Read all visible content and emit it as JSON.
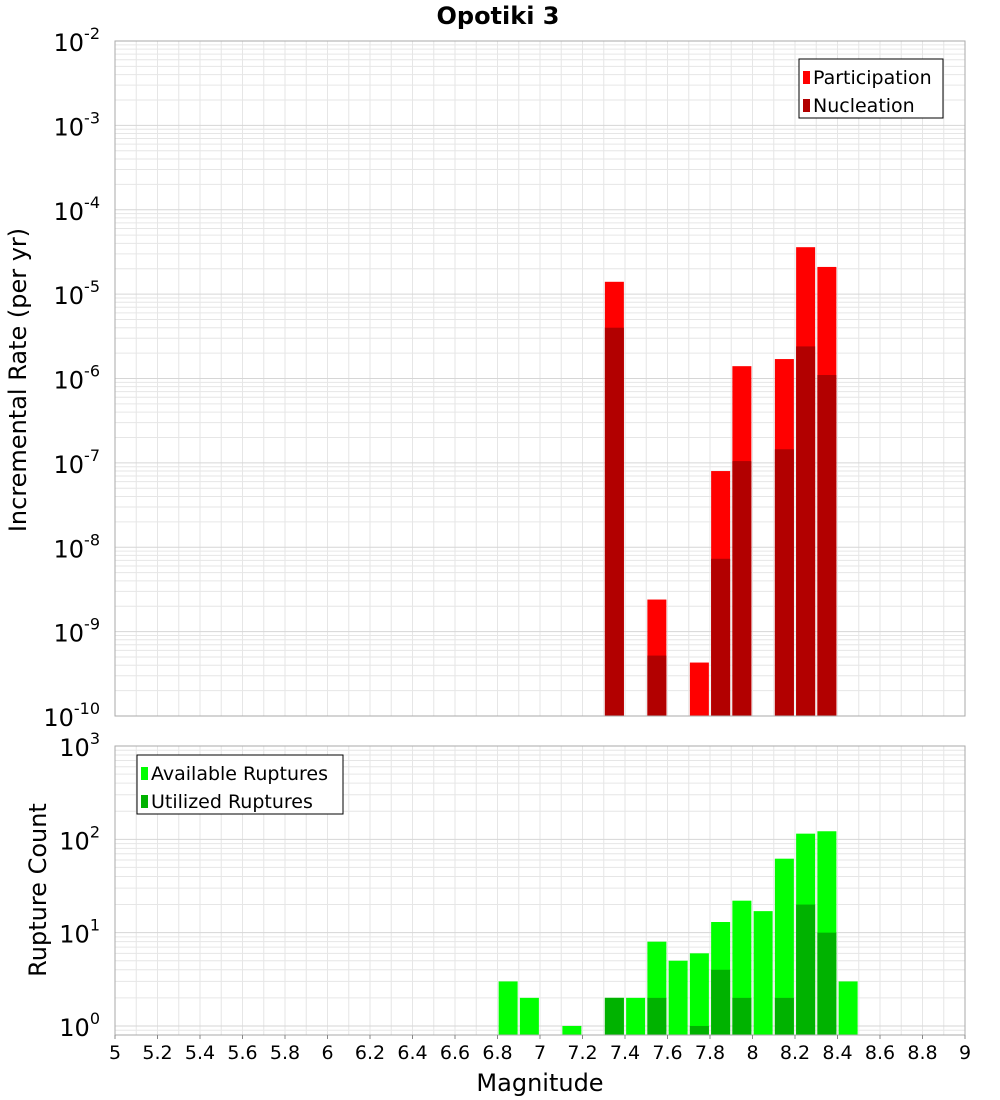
{
  "title": "Opotiki 3",
  "colors": {
    "participation": "#ff0000",
    "nucleation": "#b20000",
    "available": "#00ff00",
    "utilized": "#00b200",
    "grid": "#e6e6e6",
    "frame": "#aaaaaa"
  },
  "chart_data": [
    {
      "type": "bar",
      "panel": "top",
      "ylabel": "Incremental Rate (per yr)",
      "yscale": "log",
      "ylim": [
        1e-10,
        0.01
      ],
      "xlim": [
        5,
        9
      ],
      "y_ticks": [
        {
          "base": "10",
          "exp": "-2",
          "value": 0.01
        },
        {
          "base": "10",
          "exp": "-3",
          "value": 0.001
        },
        {
          "base": "10",
          "exp": "-4",
          "value": 0.0001
        },
        {
          "base": "10",
          "exp": "-5",
          "value": 1e-05
        },
        {
          "base": "10",
          "exp": "-6",
          "value": 1e-06
        },
        {
          "base": "10",
          "exp": "-7",
          "value": 1e-07
        },
        {
          "base": "10",
          "exp": "-8",
          "value": 1e-08
        },
        {
          "base": "10",
          "exp": "-9",
          "value": 1e-09
        },
        {
          "base": "10",
          "exp": "-10",
          "value": 1e-10
        }
      ],
      "legend": {
        "position": "top-right",
        "items": [
          "Participation",
          "Nucleation"
        ]
      },
      "series": [
        {
          "name": "Participation",
          "x": [
            7.35,
            7.55,
            7.75,
            7.85,
            7.95,
            8.15,
            8.25,
            8.35
          ],
          "values": [
            1.4e-05,
            2.4e-09,
            4.3e-10,
            8e-08,
            1.4e-06,
            1.7e-06,
            3.6e-05,
            2.1e-05
          ]
        },
        {
          "name": "Nucleation",
          "x": [
            7.35,
            7.55,
            7.85,
            7.95,
            8.15,
            8.25,
            8.35
          ],
          "values": [
            4e-06,
            5.2e-10,
            7.3e-09,
            1.05e-07,
            1.45e-07,
            2.4e-06,
            1.1e-06
          ]
        }
      ]
    },
    {
      "type": "bar",
      "panel": "bottom",
      "ylabel": "Rupture Count",
      "xlabel": "Magnitude",
      "yscale": "log",
      "ylim": [
        0.8,
        1000
      ],
      "xlim": [
        5,
        9
      ],
      "y_ticks": [
        {
          "base": "10",
          "exp": "3",
          "value": 1000
        },
        {
          "base": "10",
          "exp": "2",
          "value": 100
        },
        {
          "base": "10",
          "exp": "1",
          "value": 10
        },
        {
          "base": "10",
          "exp": "0",
          "value": 1
        }
      ],
      "x_ticks": [
        "5",
        "5.2",
        "5.4",
        "5.6",
        "5.8",
        "6",
        "6.2",
        "6.4",
        "6.6",
        "6.8",
        "7",
        "7.2",
        "7.4",
        "7.6",
        "7.8",
        "8",
        "8.2",
        "8.4",
        "8.6",
        "8.8",
        "9"
      ],
      "legend": {
        "position": "top-left",
        "items": [
          "Available Ruptures",
          "Utilized Ruptures"
        ]
      },
      "series": [
        {
          "name": "Available Ruptures",
          "x": [
            6.85,
            6.95,
            7.15,
            7.35,
            7.45,
            7.55,
            7.65,
            7.75,
            7.85,
            7.95,
            8.05,
            8.15,
            8.25,
            8.35,
            8.45
          ],
          "values": [
            3,
            2,
            1,
            2,
            2,
            8,
            5,
            6,
            13,
            22,
            17,
            62,
            115,
            122,
            3
          ]
        },
        {
          "name": "Utilized Ruptures",
          "x": [
            7.35,
            7.55,
            7.75,
            7.85,
            7.95,
            8.15,
            8.25,
            8.35
          ],
          "values": [
            2,
            2,
            1,
            4,
            2,
            2,
            20,
            10
          ]
        }
      ]
    }
  ]
}
